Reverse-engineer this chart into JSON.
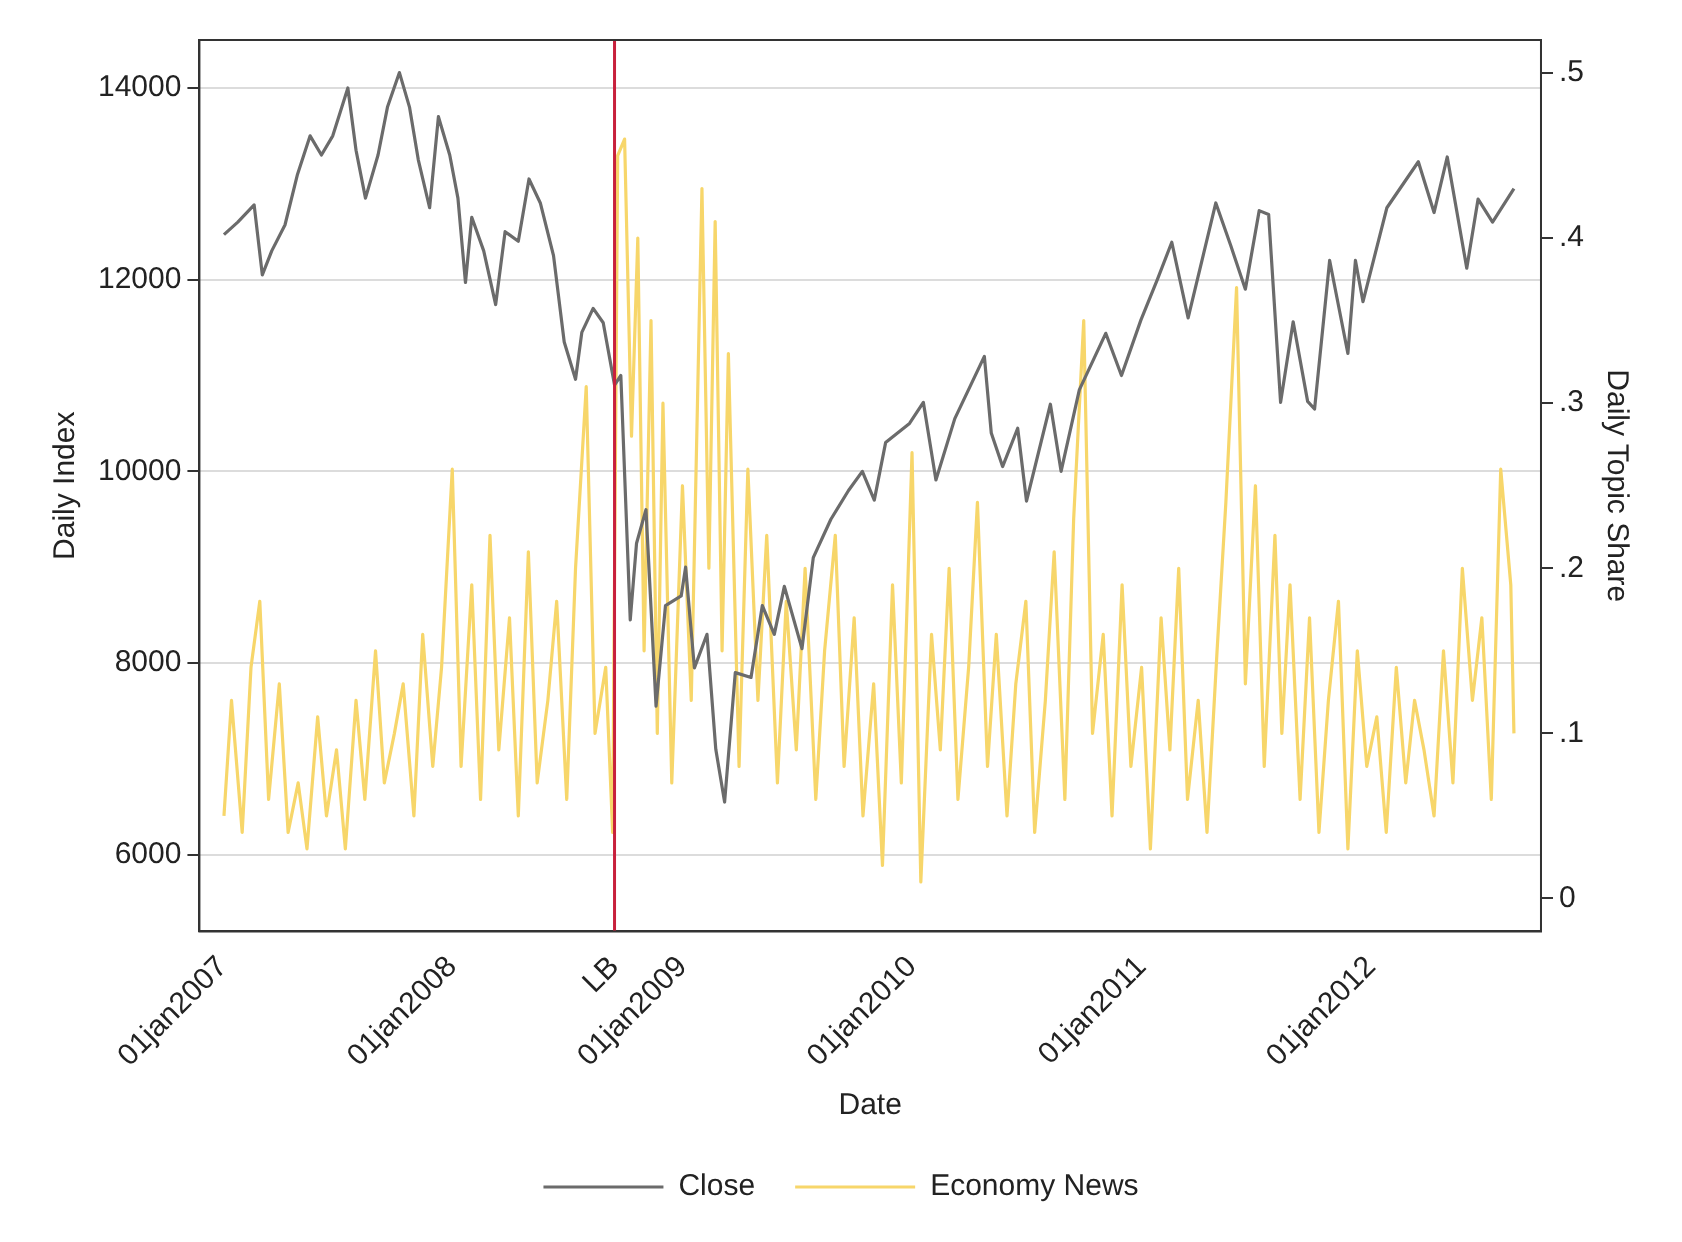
{
  "chart_data": {
    "type": "line",
    "xlabel": "Date",
    "ylabel": "Daily Index",
    "y2label": "Daily Topic Share",
    "xlim": [
      "2006-11-25",
      "2012-09-27"
    ],
    "xticks": [
      {
        "value": "2007-01-01",
        "label": "01jan2007"
      },
      {
        "value": "2008-01-01",
        "label": "01jan2008"
      },
      {
        "value": "2008-09-15",
        "label": "LB"
      },
      {
        "value": "2009-01-01",
        "label": "01jan2009"
      },
      {
        "value": "2010-01-01",
        "label": "01jan2010"
      },
      {
        "value": "2011-01-01",
        "label": "01jan2011"
      },
      {
        "value": "2012-01-01",
        "label": "01jan2012"
      }
    ],
    "ylim": [
      5200,
      14500
    ],
    "yticks": [
      6000,
      8000,
      10000,
      12000,
      14000
    ],
    "y2lim": [
      -0.02,
      0.52
    ],
    "y2ticks": [
      {
        "value": 0,
        "label": "0"
      },
      {
        "value": 0.1,
        "label": ".1"
      },
      {
        "value": 0.2,
        "label": ".2"
      },
      {
        "value": 0.3,
        "label": ".3"
      },
      {
        "value": 0.4,
        "label": ".4"
      },
      {
        "value": 0.5,
        "label": ".5"
      }
    ],
    "grid": "y",
    "legend": "bottom",
    "marker": "none",
    "line_style": "solid",
    "ref_lines": [
      {
        "axis": "x",
        "value": "2008-09-15",
        "color": "#c8203c"
      }
    ],
    "series": [
      {
        "name": "Close",
        "color": "#6b6b6b",
        "x": [
          "2007-01-03",
          "2007-01-25",
          "2007-02-20",
          "2007-03-05",
          "2007-03-20",
          "2007-04-10",
          "2007-04-30",
          "2007-05-20",
          "2007-06-07",
          "2007-06-25",
          "2007-07-19",
          "2007-08-01",
          "2007-08-16",
          "2007-09-05",
          "2007-09-20",
          "2007-10-09",
          "2007-10-25",
          "2007-11-08",
          "2007-11-26",
          "2007-12-10",
          "2007-12-28",
          "2008-01-10",
          "2008-01-22",
          "2008-02-01",
          "2008-02-20",
          "2008-03-10",
          "2008-03-25",
          "2008-04-15",
          "2008-05-02",
          "2008-05-20",
          "2008-06-10",
          "2008-06-27",
          "2008-07-15",
          "2008-07-25",
          "2008-08-12",
          "2008-08-28",
          "2008-09-15",
          "2008-09-25",
          "2008-10-10",
          "2008-10-20",
          "2008-11-04",
          "2008-11-20",
          "2008-12-05",
          "2008-12-30",
          "2009-01-06",
          "2009-01-20",
          "2009-02-09",
          "2009-02-23",
          "2009-03-09",
          "2009-03-26",
          "2009-04-20",
          "2009-05-08",
          "2009-05-27",
          "2009-06-12",
          "2009-07-10",
          "2009-07-28",
          "2009-08-25",
          "2009-09-22",
          "2009-10-14",
          "2009-11-02",
          "2009-11-20",
          "2009-12-28",
          "2010-01-19",
          "2010-02-08",
          "2010-03-10",
          "2010-04-26",
          "2010-05-07",
          "2010-05-25",
          "2010-06-18",
          "2010-07-02",
          "2010-08-09",
          "2010-08-26",
          "2010-09-24",
          "2010-11-05",
          "2010-11-30",
          "2010-12-31",
          "2011-01-26",
          "2011-02-18",
          "2011-03-16",
          "2011-04-29",
          "2011-05-23",
          "2011-06-15",
          "2011-07-07",
          "2011-07-22",
          "2011-08-10",
          "2011-08-30",
          "2011-09-22",
          "2011-10-03",
          "2011-10-27",
          "2011-11-25",
          "2011-12-07",
          "2011-12-19",
          "2012-01-26",
          "2012-03-16",
          "2012-04-10",
          "2012-05-01",
          "2012-06-01",
          "2012-06-19",
          "2012-07-12",
          "2012-08-15"
        ],
        "values": [
          12470,
          12600,
          12780,
          12050,
          12300,
          12570,
          13100,
          13500,
          13300,
          13500,
          14000,
          13350,
          12850,
          13300,
          13800,
          14160,
          13800,
          13250,
          12750,
          13700,
          13300,
          12850,
          11970,
          12650,
          12300,
          11740,
          12500,
          12400,
          13050,
          12800,
          12250,
          11350,
          10960,
          11450,
          11700,
          11550,
          10900,
          11000,
          8450,
          9250,
          9600,
          7550,
          8600,
          8700,
          9000,
          7950,
          8300,
          7100,
          6550,
          7900,
          7850,
          8600,
          8300,
          8800,
          8150,
          9100,
          9500,
          9800,
          10000,
          9700,
          10300,
          10500,
          10720,
          9910,
          10550,
          11200,
          10400,
          10050,
          10450,
          9690,
          10700,
          10000,
          10850,
          11440,
          11000,
          11580,
          12000,
          12390,
          11600,
          12800,
          12350,
          11900,
          12720,
          12680,
          10720,
          11560,
          10730,
          10650,
          12200,
          11230,
          12200,
          11770,
          12750,
          13230,
          12700,
          13280,
          12120,
          12840,
          12600,
          12950
        ]
      },
      {
        "name": "Economy News",
        "color": "#f7d66a",
        "axis": "y2",
        "x": [
          "2007-01-03",
          "2007-01-15",
          "2007-02-01",
          "2007-02-15",
          "2007-03-01",
          "2007-03-15",
          "2007-04-01",
          "2007-04-15",
          "2007-05-01",
          "2007-05-15",
          "2007-06-01",
          "2007-06-15",
          "2007-07-01",
          "2007-07-15",
          "2007-08-01",
          "2007-08-15",
          "2007-09-01",
          "2007-09-15",
          "2007-10-01",
          "2007-10-15",
          "2007-11-01",
          "2007-11-15",
          "2007-12-01",
          "2007-12-15",
          "2008-01-01",
          "2008-01-15",
          "2008-02-01",
          "2008-02-15",
          "2008-03-01",
          "2008-03-15",
          "2008-04-01",
          "2008-04-15",
          "2008-05-01",
          "2008-05-15",
          "2008-06-01",
          "2008-06-15",
          "2008-07-01",
          "2008-07-15",
          "2008-08-01",
          "2008-08-15",
          "2008-09-01",
          "2008-09-12",
          "2008-09-20",
          "2008-10-01",
          "2008-10-12",
          "2008-10-22",
          "2008-11-01",
          "2008-11-12",
          "2008-11-22",
          "2008-12-01",
          "2008-12-15",
          "2009-01-01",
          "2009-01-15",
          "2009-02-01",
          "2009-02-12",
          "2009-02-22",
          "2009-03-05",
          "2009-03-15",
          "2009-04-01",
          "2009-04-15",
          "2009-05-01",
          "2009-05-15",
          "2009-06-01",
          "2009-06-15",
          "2009-07-01",
          "2009-07-15",
          "2009-08-01",
          "2009-08-15",
          "2009-09-01",
          "2009-09-15",
          "2009-10-01",
          "2009-10-15",
          "2009-11-01",
          "2009-11-15",
          "2009-12-01",
          "2009-12-15",
          "2010-01-01",
          "2010-01-15",
          "2010-02-01",
          "2010-02-15",
          "2010-03-01",
          "2010-03-15",
          "2010-04-01",
          "2010-04-15",
          "2010-05-01",
          "2010-05-15",
          "2010-06-01",
          "2010-06-15",
          "2010-07-01",
          "2010-07-15",
          "2010-08-01",
          "2010-08-15",
          "2010-09-01",
          "2010-09-15",
          "2010-10-01",
          "2010-10-15",
          "2010-11-01",
          "2010-11-15",
          "2010-12-01",
          "2010-12-15",
          "2011-01-01",
          "2011-01-15",
          "2011-02-01",
          "2011-02-15",
          "2011-03-01",
          "2011-03-15",
          "2011-04-01",
          "2011-04-15",
          "2011-05-01",
          "2011-05-15",
          "2011-06-01",
          "2011-06-15",
          "2011-07-01",
          "2011-07-15",
          "2011-08-01",
          "2011-08-12",
          "2011-08-25",
          "2011-09-10",
          "2011-09-25",
          "2011-10-10",
          "2011-10-25",
          "2011-11-10",
          "2011-11-25",
          "2011-12-10",
          "2011-12-25",
          "2012-01-10",
          "2012-01-25",
          "2012-02-10",
          "2012-02-25",
          "2012-03-10",
          "2012-03-25",
          "2012-04-10",
          "2012-04-25",
          "2012-05-10",
          "2012-05-25",
          "2012-06-10",
          "2012-06-25",
          "2012-07-10",
          "2012-07-25",
          "2012-08-10",
          "2012-08-15"
        ],
        "values": [
          0.05,
          0.12,
          0.04,
          0.14,
          0.18,
          0.06,
          0.13,
          0.04,
          0.07,
          0.03,
          0.11,
          0.05,
          0.09,
          0.03,
          0.12,
          0.06,
          0.15,
          0.07,
          0.1,
          0.13,
          0.05,
          0.16,
          0.08,
          0.14,
          0.26,
          0.08,
          0.19,
          0.06,
          0.22,
          0.09,
          0.17,
          0.05,
          0.21,
          0.07,
          0.12,
          0.18,
          0.06,
          0.2,
          0.31,
          0.1,
          0.14,
          0.04,
          0.45,
          0.46,
          0.28,
          0.4,
          0.15,
          0.35,
          0.1,
          0.3,
          0.07,
          0.25,
          0.12,
          0.43,
          0.2,
          0.41,
          0.15,
          0.33,
          0.08,
          0.26,
          0.12,
          0.22,
          0.07,
          0.18,
          0.09,
          0.2,
          0.06,
          0.15,
          0.22,
          0.08,
          0.17,
          0.05,
          0.13,
          0.02,
          0.19,
          0.07,
          0.27,
          0.01,
          0.16,
          0.09,
          0.2,
          0.06,
          0.14,
          0.24,
          0.08,
          0.16,
          0.05,
          0.13,
          0.18,
          0.04,
          0.12,
          0.21,
          0.06,
          0.23,
          0.35,
          0.1,
          0.16,
          0.05,
          0.19,
          0.08,
          0.14,
          0.03,
          0.17,
          0.09,
          0.2,
          0.06,
          0.12,
          0.04,
          0.15,
          0.24,
          0.37,
          0.13,
          0.25,
          0.08,
          0.22,
          0.1,
          0.19,
          0.06,
          0.17,
          0.04,
          0.12,
          0.18,
          0.03,
          0.15,
          0.08,
          0.11,
          0.04,
          0.14,
          0.07,
          0.12,
          0.09,
          0.05,
          0.15,
          0.07,
          0.2,
          0.12,
          0.17,
          0.06,
          0.26,
          0.19,
          0.1
        ]
      }
    ]
  }
}
